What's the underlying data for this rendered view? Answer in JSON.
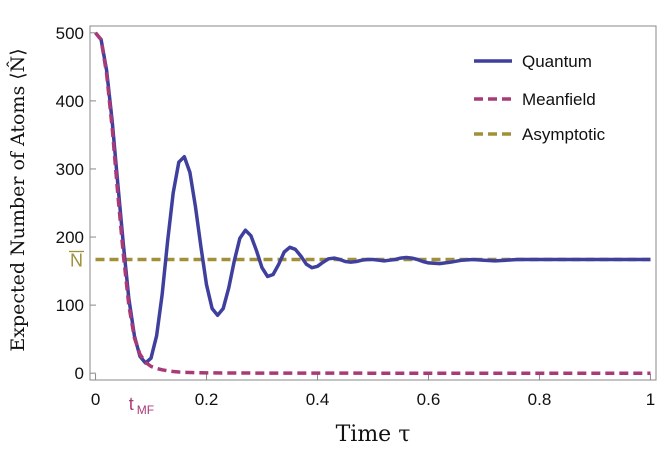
{
  "chart_data": {
    "type": "line",
    "xlabel": "Time τ",
    "ylabel": "Expected Number of Atoms ⟨N̂⟩",
    "xlim": [
      -0.01,
      1.01
    ],
    "ylim": [
      -10,
      510
    ],
    "x_ticks": [
      {
        "value": 0,
        "label": "0"
      },
      {
        "value": 0.2,
        "label": "0.2"
      },
      {
        "value": 0.4,
        "label": "0.4"
      },
      {
        "value": 0.6,
        "label": "0.6"
      },
      {
        "value": 0.8,
        "label": "0.8"
      },
      {
        "value": 1,
        "label": "1"
      }
    ],
    "y_ticks": [
      {
        "value": 0,
        "label": "0"
      },
      {
        "value": 100,
        "label": "100"
      },
      {
        "value": 200,
        "label": "200"
      },
      {
        "value": 300,
        "label": "300"
      },
      {
        "value": 400,
        "label": "400"
      },
      {
        "value": 500,
        "label": "500"
      }
    ],
    "legend_position": "top-right",
    "series": [
      {
        "name": "Quantum",
        "color": "#3f3f9e",
        "style": "solid",
        "x": [
          0,
          0.01,
          0.02,
          0.03,
          0.04,
          0.05,
          0.06,
          0.07,
          0.08,
          0.09,
          0.1,
          0.11,
          0.12,
          0.13,
          0.14,
          0.15,
          0.16,
          0.17,
          0.18,
          0.19,
          0.2,
          0.21,
          0.22,
          0.23,
          0.24,
          0.25,
          0.26,
          0.27,
          0.28,
          0.29,
          0.3,
          0.31,
          0.32,
          0.33,
          0.34,
          0.35,
          0.36,
          0.37,
          0.38,
          0.39,
          0.4,
          0.41,
          0.42,
          0.43,
          0.44,
          0.45,
          0.46,
          0.47,
          0.48,
          0.49,
          0.5,
          0.51,
          0.52,
          0.53,
          0.54,
          0.55,
          0.56,
          0.57,
          0.58,
          0.59,
          0.6,
          0.62,
          0.64,
          0.66,
          0.68,
          0.7,
          0.72,
          0.74,
          0.76,
          0.78,
          0.8,
          0.82,
          0.84,
          0.86,
          0.88,
          0.9,
          0.92,
          0.94,
          0.96,
          0.98,
          1.0
        ],
        "values": [
          500,
          490,
          445,
          370,
          280,
          190,
          110,
          55,
          25,
          15,
          22,
          55,
          115,
          195,
          265,
          310,
          318,
          295,
          245,
          185,
          130,
          95,
          85,
          95,
          125,
          165,
          198,
          210,
          202,
          180,
          155,
          142,
          145,
          160,
          178,
          185,
          182,
          172,
          160,
          155,
          157,
          163,
          168,
          169,
          167,
          164,
          163,
          164,
          166,
          167,
          167,
          166,
          165,
          166,
          167,
          169,
          170,
          169,
          167,
          164,
          162,
          161,
          163,
          166,
          167,
          166,
          165,
          166,
          167,
          167,
          167,
          167,
          167,
          167,
          167,
          167,
          167,
          167,
          167,
          167,
          167
        ]
      },
      {
        "name": "Meanfield",
        "color": "#a83a78",
        "style": "dashed",
        "x": [
          0,
          0.01,
          0.02,
          0.03,
          0.04,
          0.05,
          0.06,
          0.07,
          0.08,
          0.09,
          0.1,
          0.11,
          0.12,
          0.13,
          0.14,
          0.15,
          0.16,
          0.18,
          0.2,
          0.25,
          0.3,
          0.4,
          0.5,
          0.6,
          0.7,
          0.8,
          0.9,
          1.0
        ],
        "values": [
          500,
          490,
          440,
          360,
          265,
          175,
          100,
          52,
          28,
          16,
          10,
          7,
          5,
          3.5,
          2.5,
          1.8,
          1.3,
          0.8,
          0.5,
          0.3,
          0.2,
          0.1,
          0.05,
          0.02,
          0.01,
          0,
          0,
          0
        ]
      },
      {
        "name": "Asymptotic",
        "color": "#a0903a",
        "style": "dashed",
        "x": [
          0,
          1
        ],
        "values": [
          167,
          167
        ]
      }
    ],
    "annotations": [
      {
        "text": "N",
        "overline": true,
        "axis": "y",
        "value": 167,
        "color": "#a0903a"
      },
      {
        "text": "t",
        "subscript": "MF",
        "axis": "x",
        "value": 0.085,
        "color": "#a83a78"
      }
    ]
  }
}
